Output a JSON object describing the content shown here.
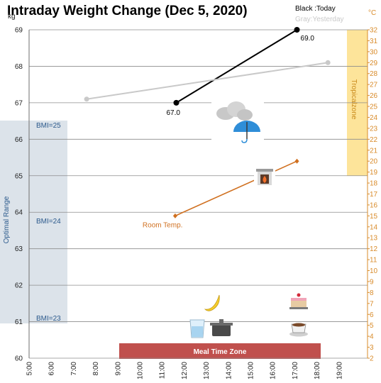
{
  "chart_data": {
    "type": "line",
    "title": "Intraday Weight Change (Dec 5, 2020)",
    "left_axis": {
      "unit": "kg",
      "ylim": [
        60,
        69
      ],
      "ticks": [
        "60",
        "61",
        "62",
        "63",
        "64",
        "65",
        "66",
        "67",
        "68",
        "69"
      ]
    },
    "right_axis": {
      "unit": "°C",
      "ylim": [
        2,
        32
      ],
      "ticks": [
        "2",
        "3",
        "4",
        "5",
        "6",
        "7",
        "8",
        "9",
        "10",
        "11",
        "12",
        "13",
        "14",
        "15",
        "16",
        "17",
        "18",
        "19",
        "20",
        "21",
        "22",
        "23",
        "24",
        "25",
        "26",
        "27",
        "28",
        "29",
        "30",
        "31",
        "32"
      ]
    },
    "x_axis": {
      "ticks": [
        "5:00",
        "6:00",
        "7:00",
        "8:00",
        "9:00",
        "10:00",
        "11:00",
        "12:00",
        "13:00",
        "14:00",
        "15:00",
        "16:00",
        "17:00",
        "18:00",
        "19:00"
      ]
    },
    "grid": true,
    "legend": {
      "today": "Black :Today",
      "yesterday": "Gray:Yesterday",
      "today_color": "#000000",
      "yesterday_color": "#c9c9c9"
    },
    "series": [
      {
        "name": "Today",
        "color": "#000000",
        "axis": "left",
        "points": [
          {
            "x": 11.65,
            "y": 67.0
          },
          {
            "x": 17.1,
            "y": 69.0
          }
        ],
        "data_labels": [
          "67.0",
          "69.0"
        ]
      },
      {
        "name": "Yesterday",
        "color": "#c9c9c9",
        "axis": "left",
        "points": [
          {
            "x": 7.6,
            "y": 67.1
          },
          {
            "x": 18.5,
            "y": 68.1
          }
        ]
      },
      {
        "name": "Room Temp.",
        "color": "#d07020",
        "axis": "right",
        "points": [
          {
            "x": 11.6,
            "y": 15
          },
          {
            "x": 17.1,
            "y": 20
          }
        ]
      }
    ],
    "bands": {
      "optimal_range": {
        "label": "Optimal Range",
        "from": 61,
        "to": 66.5,
        "color": "#dce3ea",
        "text_color": "#2c5a8c"
      },
      "tropical_zone": {
        "label": "Tropicalzone",
        "from_c": 19,
        "to_c": 31.8,
        "color": "#fde49a",
        "text_color": "#c98a1a"
      },
      "meal_time_zone": {
        "label": "Meal Time Zone",
        "from": 9.0,
        "to": 18.0,
        "color": "#c0504d"
      }
    },
    "bmi_labels": [
      {
        "text": "BMI=25",
        "y": 66.4
      },
      {
        "text": "BMI=24",
        "y": 63.8
      },
      {
        "text": "BMI=23",
        "y": 61.1
      }
    ],
    "icons": [
      "cloud-umbrella-icon",
      "fireplace-icon",
      "banana-icon",
      "cake-icon",
      "water-glass-icon",
      "cooking-pot-icon",
      "coffee-cup-icon"
    ]
  }
}
